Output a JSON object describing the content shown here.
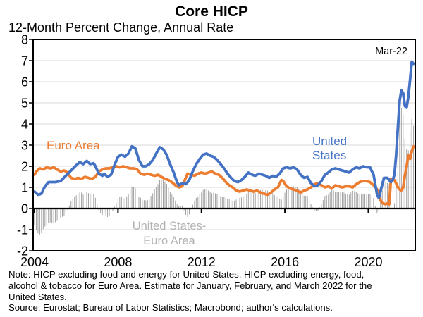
{
  "header": {
    "title": "Core HICP",
    "subtitle": "12-Month Percent Change, Annual Rate"
  },
  "notes": {
    "lines": [
      "Note: HICP excluding food and energy for United States. HICP excluding energy, food,",
      "alcohol & tobacco for Euro Area. Estimate for January, February, and March 2022 for the",
      "United States.",
      "Source: Eurostat; Bureau of Labor Statistics; Macrobond; author's calculations."
    ]
  },
  "chart_data": {
    "type": "line",
    "title": "Core HICP",
    "subtitle": "12-Month Percent Change, Annual Rate",
    "ylim": [
      -2,
      8
    ],
    "y_ticks": [
      -2,
      -1,
      0,
      1,
      2,
      3,
      4,
      5,
      6,
      7,
      8
    ],
    "x_tick_years": [
      2004,
      2008,
      2012,
      2016,
      2020
    ],
    "x_range_years": [
      2004.0,
      2022.167
    ],
    "grid": true,
    "legend_position": "in-plot text labels",
    "colors": {
      "united_states": "#4472C4",
      "euro_area": "#ED7D31",
      "difference_bars": "#A0A0A0",
      "grid": "#D9D9D9",
      "difference_label": "#B3B3B3",
      "axis": "#000000"
    },
    "annotations": [
      {
        "id": "euro-area-label",
        "lines": [
          "Euro Area"
        ],
        "color": "#ED7D31"
      },
      {
        "id": "united-states-label",
        "lines": [
          "United",
          "States"
        ],
        "color": "#4472C4"
      },
      {
        "id": "mar-22-label",
        "lines": [
          "Mar-22"
        ],
        "color": "#000000"
      },
      {
        "id": "difference-label",
        "lines": [
          "United States-",
          "Euro Area"
        ],
        "color": "#B3B3B3"
      }
    ],
    "series": [
      {
        "name": "Euro Area",
        "type": "line",
        "color": "#ED7D31",
        "points": [
          [
            2004.0,
            1.6
          ],
          [
            2004.08,
            1.75
          ],
          [
            2004.25,
            1.9
          ],
          [
            2004.42,
            1.85
          ],
          [
            2004.58,
            1.95
          ],
          [
            2004.75,
            1.9
          ],
          [
            2004.92,
            1.95
          ],
          [
            2005.08,
            1.85
          ],
          [
            2005.25,
            1.75
          ],
          [
            2005.42,
            1.8
          ],
          [
            2005.58,
            1.7
          ],
          [
            2005.75,
            1.45
          ],
          [
            2005.92,
            1.4
          ],
          [
            2006.08,
            1.45
          ],
          [
            2006.25,
            1.4
          ],
          [
            2006.42,
            1.5
          ],
          [
            2006.58,
            1.45
          ],
          [
            2006.75,
            1.4
          ],
          [
            2006.92,
            1.5
          ],
          [
            2007.08,
            1.75
          ],
          [
            2007.25,
            1.85
          ],
          [
            2007.42,
            1.9
          ],
          [
            2007.58,
            1.9
          ],
          [
            2007.75,
            1.95
          ],
          [
            2007.92,
            2.0
          ],
          [
            2008.08,
            1.95
          ],
          [
            2008.25,
            2.0
          ],
          [
            2008.42,
            1.95
          ],
          [
            2008.58,
            1.9
          ],
          [
            2008.75,
            1.9
          ],
          [
            2008.92,
            1.85
          ],
          [
            2009.08,
            1.65
          ],
          [
            2009.25,
            1.6
          ],
          [
            2009.42,
            1.65
          ],
          [
            2009.58,
            1.6
          ],
          [
            2009.75,
            1.55
          ],
          [
            2009.92,
            1.6
          ],
          [
            2010.08,
            1.5
          ],
          [
            2010.25,
            1.4
          ],
          [
            2010.42,
            1.35
          ],
          [
            2010.58,
            1.25
          ],
          [
            2010.75,
            1.1
          ],
          [
            2010.92,
            1.0
          ],
          [
            2011.08,
            1.05
          ],
          [
            2011.25,
            1.45
          ],
          [
            2011.33,
            1.65
          ],
          [
            2011.5,
            1.6
          ],
          [
            2011.67,
            1.55
          ],
          [
            2011.83,
            1.65
          ],
          [
            2012.0,
            1.7
          ],
          [
            2012.17,
            1.65
          ],
          [
            2012.33,
            1.7
          ],
          [
            2012.5,
            1.75
          ],
          [
            2012.67,
            1.65
          ],
          [
            2012.83,
            1.6
          ],
          [
            2013.0,
            1.45
          ],
          [
            2013.17,
            1.25
          ],
          [
            2013.33,
            1.1
          ],
          [
            2013.5,
            1.0
          ],
          [
            2013.67,
            0.85
          ],
          [
            2013.83,
            0.8
          ],
          [
            2014.0,
            0.85
          ],
          [
            2014.17,
            0.9
          ],
          [
            2014.33,
            0.85
          ],
          [
            2014.5,
            0.8
          ],
          [
            2014.67,
            0.85
          ],
          [
            2014.83,
            0.75
          ],
          [
            2015.0,
            0.7
          ],
          [
            2015.17,
            0.65
          ],
          [
            2015.33,
            0.75
          ],
          [
            2015.5,
            0.9
          ],
          [
            2015.67,
            1.0
          ],
          [
            2015.83,
            1.35
          ],
          [
            2015.92,
            1.3
          ],
          [
            2016.08,
            1.05
          ],
          [
            2016.25,
            0.95
          ],
          [
            2016.42,
            0.9
          ],
          [
            2016.58,
            0.85
          ],
          [
            2016.75,
            0.75
          ],
          [
            2016.92,
            0.85
          ],
          [
            2017.08,
            0.9
          ],
          [
            2017.25,
            1.0
          ],
          [
            2017.42,
            1.15
          ],
          [
            2017.58,
            1.2
          ],
          [
            2017.75,
            1.1
          ],
          [
            2017.92,
            1.0
          ],
          [
            2018.08,
            1.05
          ],
          [
            2018.25,
            0.95
          ],
          [
            2018.42,
            1.1
          ],
          [
            2018.58,
            1.05
          ],
          [
            2018.75,
            1.0
          ],
          [
            2018.92,
            1.05
          ],
          [
            2019.08,
            1.05
          ],
          [
            2019.25,
            1.0
          ],
          [
            2019.42,
            1.15
          ],
          [
            2019.58,
            1.25
          ],
          [
            2019.75,
            1.3
          ],
          [
            2019.92,
            1.3
          ],
          [
            2020.08,
            1.25
          ],
          [
            2020.25,
            1.1
          ],
          [
            2020.42,
            0.9
          ],
          [
            2020.58,
            0.4
          ],
          [
            2020.67,
            0.25
          ],
          [
            2020.83,
            0.2
          ],
          [
            2020.92,
            0.25
          ],
          [
            2021.0,
            0.2
          ],
          [
            2021.08,
            1.4
          ],
          [
            2021.25,
            1.35
          ],
          [
            2021.42,
            1.0
          ],
          [
            2021.5,
            0.9
          ],
          [
            2021.58,
            0.85
          ],
          [
            2021.67,
            1.0
          ],
          [
            2021.75,
            1.55
          ],
          [
            2021.83,
            1.95
          ],
          [
            2021.92,
            2.55
          ],
          [
            2022.0,
            2.35
          ],
          [
            2022.08,
            2.7
          ],
          [
            2022.17,
            2.95
          ]
        ]
      },
      {
        "name": "United States",
        "type": "line",
        "color": "#4472C4",
        "points": [
          [
            2004.0,
            0.8
          ],
          [
            2004.17,
            0.65
          ],
          [
            2004.33,
            0.7
          ],
          [
            2004.5,
            1.05
          ],
          [
            2004.67,
            1.25
          ],
          [
            2005.0,
            1.25
          ],
          [
            2005.25,
            1.3
          ],
          [
            2005.5,
            1.55
          ],
          [
            2005.75,
            1.8
          ],
          [
            2006.0,
            2.05
          ],
          [
            2006.17,
            2.2
          ],
          [
            2006.33,
            2.1
          ],
          [
            2006.5,
            2.25
          ],
          [
            2006.67,
            2.1
          ],
          [
            2006.83,
            2.15
          ],
          [
            2006.92,
            2.0
          ],
          [
            2007.08,
            1.65
          ],
          [
            2007.25,
            1.55
          ],
          [
            2007.33,
            1.65
          ],
          [
            2007.5,
            1.5
          ],
          [
            2007.67,
            1.6
          ],
          [
            2007.83,
            2.05
          ],
          [
            2008.0,
            2.45
          ],
          [
            2008.17,
            2.55
          ],
          [
            2008.33,
            2.45
          ],
          [
            2008.5,
            2.6
          ],
          [
            2008.67,
            2.95
          ],
          [
            2008.83,
            2.85
          ],
          [
            2009.0,
            2.3
          ],
          [
            2009.17,
            2.0
          ],
          [
            2009.33,
            2.0
          ],
          [
            2009.5,
            2.1
          ],
          [
            2009.67,
            2.3
          ],
          [
            2009.83,
            2.6
          ],
          [
            2010.0,
            2.9
          ],
          [
            2010.17,
            2.8
          ],
          [
            2010.33,
            2.55
          ],
          [
            2010.5,
            2.1
          ],
          [
            2010.67,
            1.7
          ],
          [
            2010.83,
            1.25
          ],
          [
            2010.92,
            1.1
          ],
          [
            2011.08,
            1.2
          ],
          [
            2011.25,
            1.15
          ],
          [
            2011.42,
            1.35
          ],
          [
            2011.58,
            1.75
          ],
          [
            2011.75,
            2.1
          ],
          [
            2011.92,
            2.35
          ],
          [
            2012.08,
            2.55
          ],
          [
            2012.25,
            2.6
          ],
          [
            2012.42,
            2.5
          ],
          [
            2012.58,
            2.45
          ],
          [
            2012.75,
            2.3
          ],
          [
            2012.92,
            2.1
          ],
          [
            2013.08,
            1.9
          ],
          [
            2013.25,
            1.65
          ],
          [
            2013.42,
            1.45
          ],
          [
            2013.58,
            1.3
          ],
          [
            2013.75,
            1.25
          ],
          [
            2013.92,
            1.35
          ],
          [
            2014.08,
            1.5
          ],
          [
            2014.25,
            1.7
          ],
          [
            2014.42,
            1.6
          ],
          [
            2014.58,
            1.55
          ],
          [
            2014.75,
            1.65
          ],
          [
            2014.92,
            1.6
          ],
          [
            2015.08,
            1.55
          ],
          [
            2015.25,
            1.45
          ],
          [
            2015.42,
            1.55
          ],
          [
            2015.58,
            1.5
          ],
          [
            2015.75,
            1.65
          ],
          [
            2015.92,
            1.9
          ],
          [
            2016.08,
            1.95
          ],
          [
            2016.25,
            1.9
          ],
          [
            2016.42,
            1.95
          ],
          [
            2016.58,
            1.85
          ],
          [
            2016.75,
            1.6
          ],
          [
            2016.92,
            1.45
          ],
          [
            2017.08,
            1.5
          ],
          [
            2017.25,
            1.2
          ],
          [
            2017.42,
            1.05
          ],
          [
            2017.58,
            1.1
          ],
          [
            2017.75,
            1.3
          ],
          [
            2017.92,
            1.6
          ],
          [
            2018.08,
            1.7
          ],
          [
            2018.25,
            1.85
          ],
          [
            2018.42,
            1.9
          ],
          [
            2018.58,
            1.85
          ],
          [
            2018.75,
            1.8
          ],
          [
            2018.92,
            1.75
          ],
          [
            2019.08,
            1.7
          ],
          [
            2019.25,
            1.85
          ],
          [
            2019.42,
            1.95
          ],
          [
            2019.58,
            1.9
          ],
          [
            2019.75,
            2.0
          ],
          [
            2019.92,
            1.95
          ],
          [
            2020.08,
            1.95
          ],
          [
            2020.25,
            1.6
          ],
          [
            2020.42,
            0.65
          ],
          [
            2020.5,
            0.5
          ],
          [
            2020.58,
            0.8
          ],
          [
            2020.75,
            1.45
          ],
          [
            2020.92,
            1.45
          ],
          [
            2021.08,
            1.25
          ],
          [
            2021.17,
            1.35
          ],
          [
            2021.25,
            1.6
          ],
          [
            2021.33,
            2.5
          ],
          [
            2021.42,
            3.9
          ],
          [
            2021.5,
            5.1
          ],
          [
            2021.58,
            5.6
          ],
          [
            2021.67,
            5.45
          ],
          [
            2021.75,
            4.85
          ],
          [
            2021.83,
            4.75
          ],
          [
            2021.92,
            5.3
          ],
          [
            2022.0,
            6.1
          ],
          [
            2022.08,
            6.95
          ],
          [
            2022.17,
            6.85
          ]
        ]
      },
      {
        "name": "United States-Euro Area",
        "type": "bar",
        "color": "#A0A0A0",
        "definition": "United States line minus Euro Area line, monthly difference bars"
      }
    ]
  }
}
